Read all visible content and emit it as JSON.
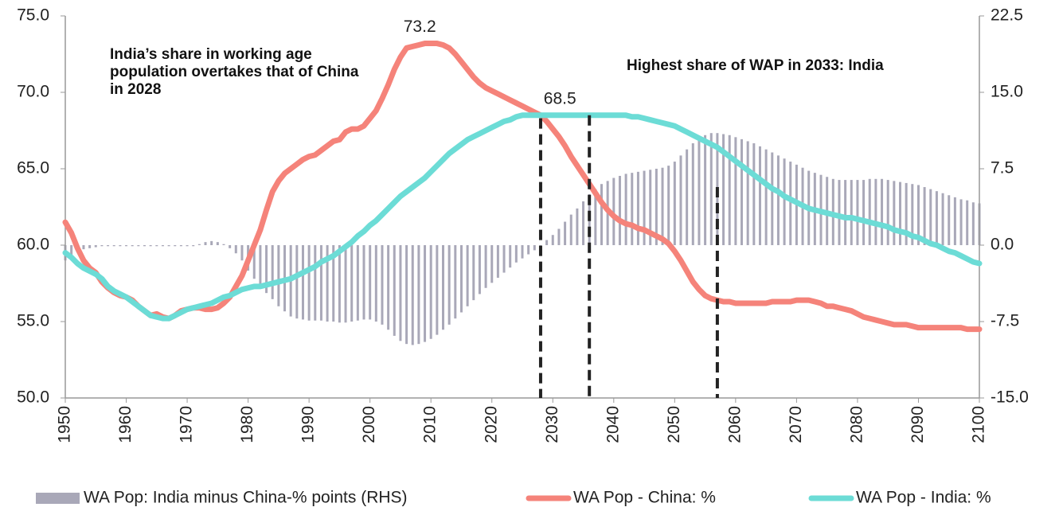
{
  "chart_data": {
    "type": "combo",
    "x": [
      1950,
      1951,
      1952,
      1953,
      1954,
      1955,
      1956,
      1957,
      1958,
      1959,
      1960,
      1961,
      1962,
      1963,
      1964,
      1965,
      1966,
      1967,
      1968,
      1969,
      1970,
      1971,
      1972,
      1973,
      1974,
      1975,
      1976,
      1977,
      1978,
      1979,
      1980,
      1981,
      1982,
      1983,
      1984,
      1985,
      1986,
      1987,
      1988,
      1989,
      1990,
      1991,
      1992,
      1993,
      1994,
      1995,
      1996,
      1997,
      1998,
      1999,
      2000,
      2001,
      2002,
      2003,
      2004,
      2005,
      2006,
      2007,
      2008,
      2009,
      2010,
      2011,
      2012,
      2013,
      2014,
      2015,
      2016,
      2017,
      2018,
      2019,
      2020,
      2021,
      2022,
      2023,
      2024,
      2025,
      2026,
      2027,
      2028,
      2029,
      2030,
      2031,
      2032,
      2033,
      2034,
      2035,
      2036,
      2037,
      2038,
      2039,
      2040,
      2041,
      2042,
      2043,
      2044,
      2045,
      2046,
      2047,
      2048,
      2049,
      2050,
      2051,
      2052,
      2053,
      2054,
      2055,
      2056,
      2057,
      2058,
      2059,
      2060,
      2061,
      2062,
      2063,
      2064,
      2065,
      2066,
      2067,
      2068,
      2069,
      2070,
      2071,
      2072,
      2073,
      2074,
      2075,
      2076,
      2077,
      2078,
      2079,
      2080,
      2081,
      2082,
      2083,
      2084,
      2085,
      2086,
      2087,
      2088,
      2089,
      2090,
      2091,
      2092,
      2093,
      2094,
      2095,
      2096,
      2097,
      2098,
      2099,
      2100
    ],
    "series": [
      {
        "name": "WA Pop: India minus China-% points (RHS)",
        "type": "bar",
        "axis": "y2",
        "color": "#a9a8b8",
        "values": [
          -1.5,
          -1.0,
          -0.5,
          -0.4,
          -0.3,
          -0.2,
          -0.1,
          -0.1,
          -0.1,
          -0.1,
          -0.1,
          -0.1,
          -0.1,
          -0.1,
          -0.1,
          -0.1,
          -0.1,
          -0.1,
          -0.1,
          -0.1,
          -0.1,
          -0.1,
          0.1,
          0.3,
          0.4,
          0.3,
          0.1,
          -0.3,
          -0.8,
          -1.5,
          -2.5,
          -3.3,
          -4.0,
          -4.7,
          -5.3,
          -6.0,
          -6.5,
          -7.0,
          -7.2,
          -7.3,
          -7.4,
          -7.4,
          -7.4,
          -7.5,
          -7.5,
          -7.6,
          -7.6,
          -7.5,
          -7.4,
          -7.3,
          -7.3,
          -7.5,
          -7.8,
          -8.3,
          -8.9,
          -9.4,
          -9.7,
          -9.8,
          -9.7,
          -9.5,
          -9.2,
          -8.8,
          -8.3,
          -7.8,
          -7.2,
          -6.6,
          -6.0,
          -5.4,
          -4.8,
          -4.2,
          -3.7,
          -3.2,
          -2.7,
          -2.2,
          -1.7,
          -1.3,
          -0.9,
          -0.5,
          0.0,
          0.5,
          1.0,
          1.6,
          2.3,
          3.0,
          3.6,
          4.3,
          5.0,
          5.5,
          6.0,
          6.3,
          6.6,
          6.8,
          7.0,
          7.1,
          7.2,
          7.3,
          7.4,
          7.5,
          7.6,
          7.8,
          8.2,
          8.8,
          9.4,
          10.0,
          10.5,
          10.8,
          11.0,
          11.0,
          10.9,
          10.8,
          10.6,
          10.4,
          10.2,
          10.0,
          9.7,
          9.4,
          9.1,
          8.8,
          8.5,
          8.2,
          7.9,
          7.6,
          7.3,
          7.1,
          6.9,
          6.7,
          6.5,
          6.4,
          6.4,
          6.4,
          6.4,
          6.4,
          6.5,
          6.5,
          6.5,
          6.4,
          6.3,
          6.2,
          6.1,
          6.0,
          5.9,
          5.7,
          5.5,
          5.3,
          5.1,
          4.9,
          4.7,
          4.5,
          4.4,
          4.2,
          4.1
        ]
      },
      {
        "name": "WA Pop - China: %",
        "type": "line",
        "color": "#f5837a",
        "values": [
          61.5,
          60.8,
          59.8,
          59.0,
          58.5,
          58.2,
          57.6,
          57.2,
          56.9,
          56.7,
          56.6,
          56.4,
          56.0,
          55.7,
          55.4,
          55.5,
          55.3,
          55.2,
          55.4,
          55.7,
          55.8,
          55.9,
          55.9,
          55.8,
          55.8,
          55.9,
          56.2,
          56.6,
          57.3,
          58.0,
          59.0,
          60.0,
          61.0,
          62.3,
          63.5,
          64.2,
          64.7,
          65.0,
          65.3,
          65.6,
          65.8,
          65.9,
          66.2,
          66.5,
          66.8,
          66.9,
          67.4,
          67.6,
          67.6,
          67.8,
          68.3,
          68.8,
          69.6,
          70.5,
          71.5,
          72.3,
          72.9,
          73.0,
          73.1,
          73.2,
          73.2,
          73.2,
          73.1,
          72.9,
          72.5,
          72.0,
          71.5,
          71.0,
          70.6,
          70.3,
          70.1,
          69.9,
          69.7,
          69.5,
          69.3,
          69.1,
          68.9,
          68.7,
          68.5,
          68.1,
          67.6,
          67.1,
          66.5,
          65.8,
          65.2,
          64.6,
          64.0,
          63.4,
          62.8,
          62.3,
          61.9,
          61.6,
          61.4,
          61.3,
          61.1,
          61.0,
          60.8,
          60.6,
          60.4,
          60.1,
          59.6,
          59.0,
          58.3,
          57.6,
          57.1,
          56.7,
          56.5,
          56.4,
          56.3,
          56.3,
          56.2,
          56.2,
          56.2,
          56.2,
          56.2,
          56.2,
          56.3,
          56.3,
          56.3,
          56.3,
          56.4,
          56.4,
          56.4,
          56.3,
          56.2,
          56.0,
          56.0,
          55.9,
          55.8,
          55.7,
          55.5,
          55.3,
          55.2,
          55.1,
          55.0,
          54.9,
          54.8,
          54.8,
          54.8,
          54.7,
          54.6,
          54.6,
          54.6,
          54.6,
          54.6,
          54.6,
          54.6,
          54.6,
          54.5,
          54.5,
          54.5
        ]
      },
      {
        "name": "WA Pop - India: %",
        "type": "line",
        "color": "#6cdcd6",
        "values": [
          59.5,
          59.2,
          58.8,
          58.5,
          58.3,
          58.1,
          57.8,
          57.3,
          57.0,
          56.8,
          56.6,
          56.3,
          56.0,
          55.7,
          55.4,
          55.3,
          55.2,
          55.2,
          55.4,
          55.6,
          55.8,
          55.9,
          56.0,
          56.1,
          56.2,
          56.4,
          56.6,
          56.7,
          56.9,
          57.1,
          57.2,
          57.3,
          57.3,
          57.4,
          57.5,
          57.6,
          57.7,
          57.8,
          58.0,
          58.2,
          58.4,
          58.6,
          58.9,
          59.1,
          59.3,
          59.6,
          59.9,
          60.2,
          60.6,
          60.9,
          61.3,
          61.6,
          62.0,
          62.4,
          62.8,
          63.2,
          63.5,
          63.8,
          64.1,
          64.4,
          64.8,
          65.2,
          65.6,
          66.0,
          66.3,
          66.6,
          66.9,
          67.1,
          67.3,
          67.5,
          67.7,
          67.9,
          68.1,
          68.2,
          68.4,
          68.5,
          68.5,
          68.5,
          68.5,
          68.5,
          68.5,
          68.5,
          68.5,
          68.5,
          68.5,
          68.5,
          68.5,
          68.5,
          68.5,
          68.5,
          68.5,
          68.5,
          68.5,
          68.4,
          68.4,
          68.3,
          68.2,
          68.1,
          68.0,
          67.9,
          67.8,
          67.6,
          67.4,
          67.2,
          67.0,
          66.8,
          66.6,
          66.4,
          66.1,
          65.8,
          65.5,
          65.2,
          64.9,
          64.6,
          64.3,
          64.0,
          63.7,
          63.5,
          63.2,
          63.0,
          62.8,
          62.6,
          62.4,
          62.3,
          62.2,
          62.1,
          62.0,
          61.9,
          61.8,
          61.8,
          61.7,
          61.6,
          61.5,
          61.4,
          61.3,
          61.2,
          61.0,
          60.9,
          60.8,
          60.6,
          60.5,
          60.3,
          60.1,
          60.0,
          59.8,
          59.6,
          59.5,
          59.3,
          59.1,
          58.9,
          58.8
        ]
      }
    ],
    "xlim": [
      1950,
      2100
    ],
    "xticks": [
      1950,
      1960,
      1970,
      1980,
      1990,
      2000,
      2010,
      2020,
      2030,
      2040,
      2050,
      2060,
      2070,
      2080,
      2090,
      2100
    ],
    "ylim": [
      50,
      75
    ],
    "yticks": [
      {
        "value": 50,
        "label": "50.0"
      },
      {
        "value": 55,
        "label": "55.0"
      },
      {
        "value": 60,
        "label": "60.0"
      },
      {
        "value": 65,
        "label": "65.0"
      },
      {
        "value": 70,
        "label": "70.0"
      },
      {
        "value": 75,
        "label": "75.0"
      }
    ],
    "y2lim": [
      -15,
      22.5
    ],
    "y2ticks": [
      {
        "value": -15,
        "label": "-15.0"
      },
      -7.5,
      {
        "value": 0,
        "label": "0.0"
      },
      7.5,
      {
        "value": 15,
        "label": "15.0"
      },
      22.5
    ],
    "peak_labels": [
      {
        "x": 2010,
        "value": 73.2
      },
      {
        "x": 2033,
        "value": 68.5
      }
    ],
    "reference_lines": [
      {
        "x": 2028,
        "top": 68.3
      },
      {
        "x": 2036,
        "top": 68.5
      },
      {
        "x": 2057,
        "top": 63.8
      }
    ],
    "annotations": [
      "India’s share in working age population overtakes that of China in 2028",
      "Highest share of WAP in 2033: India"
    ],
    "legend": "bottom"
  }
}
